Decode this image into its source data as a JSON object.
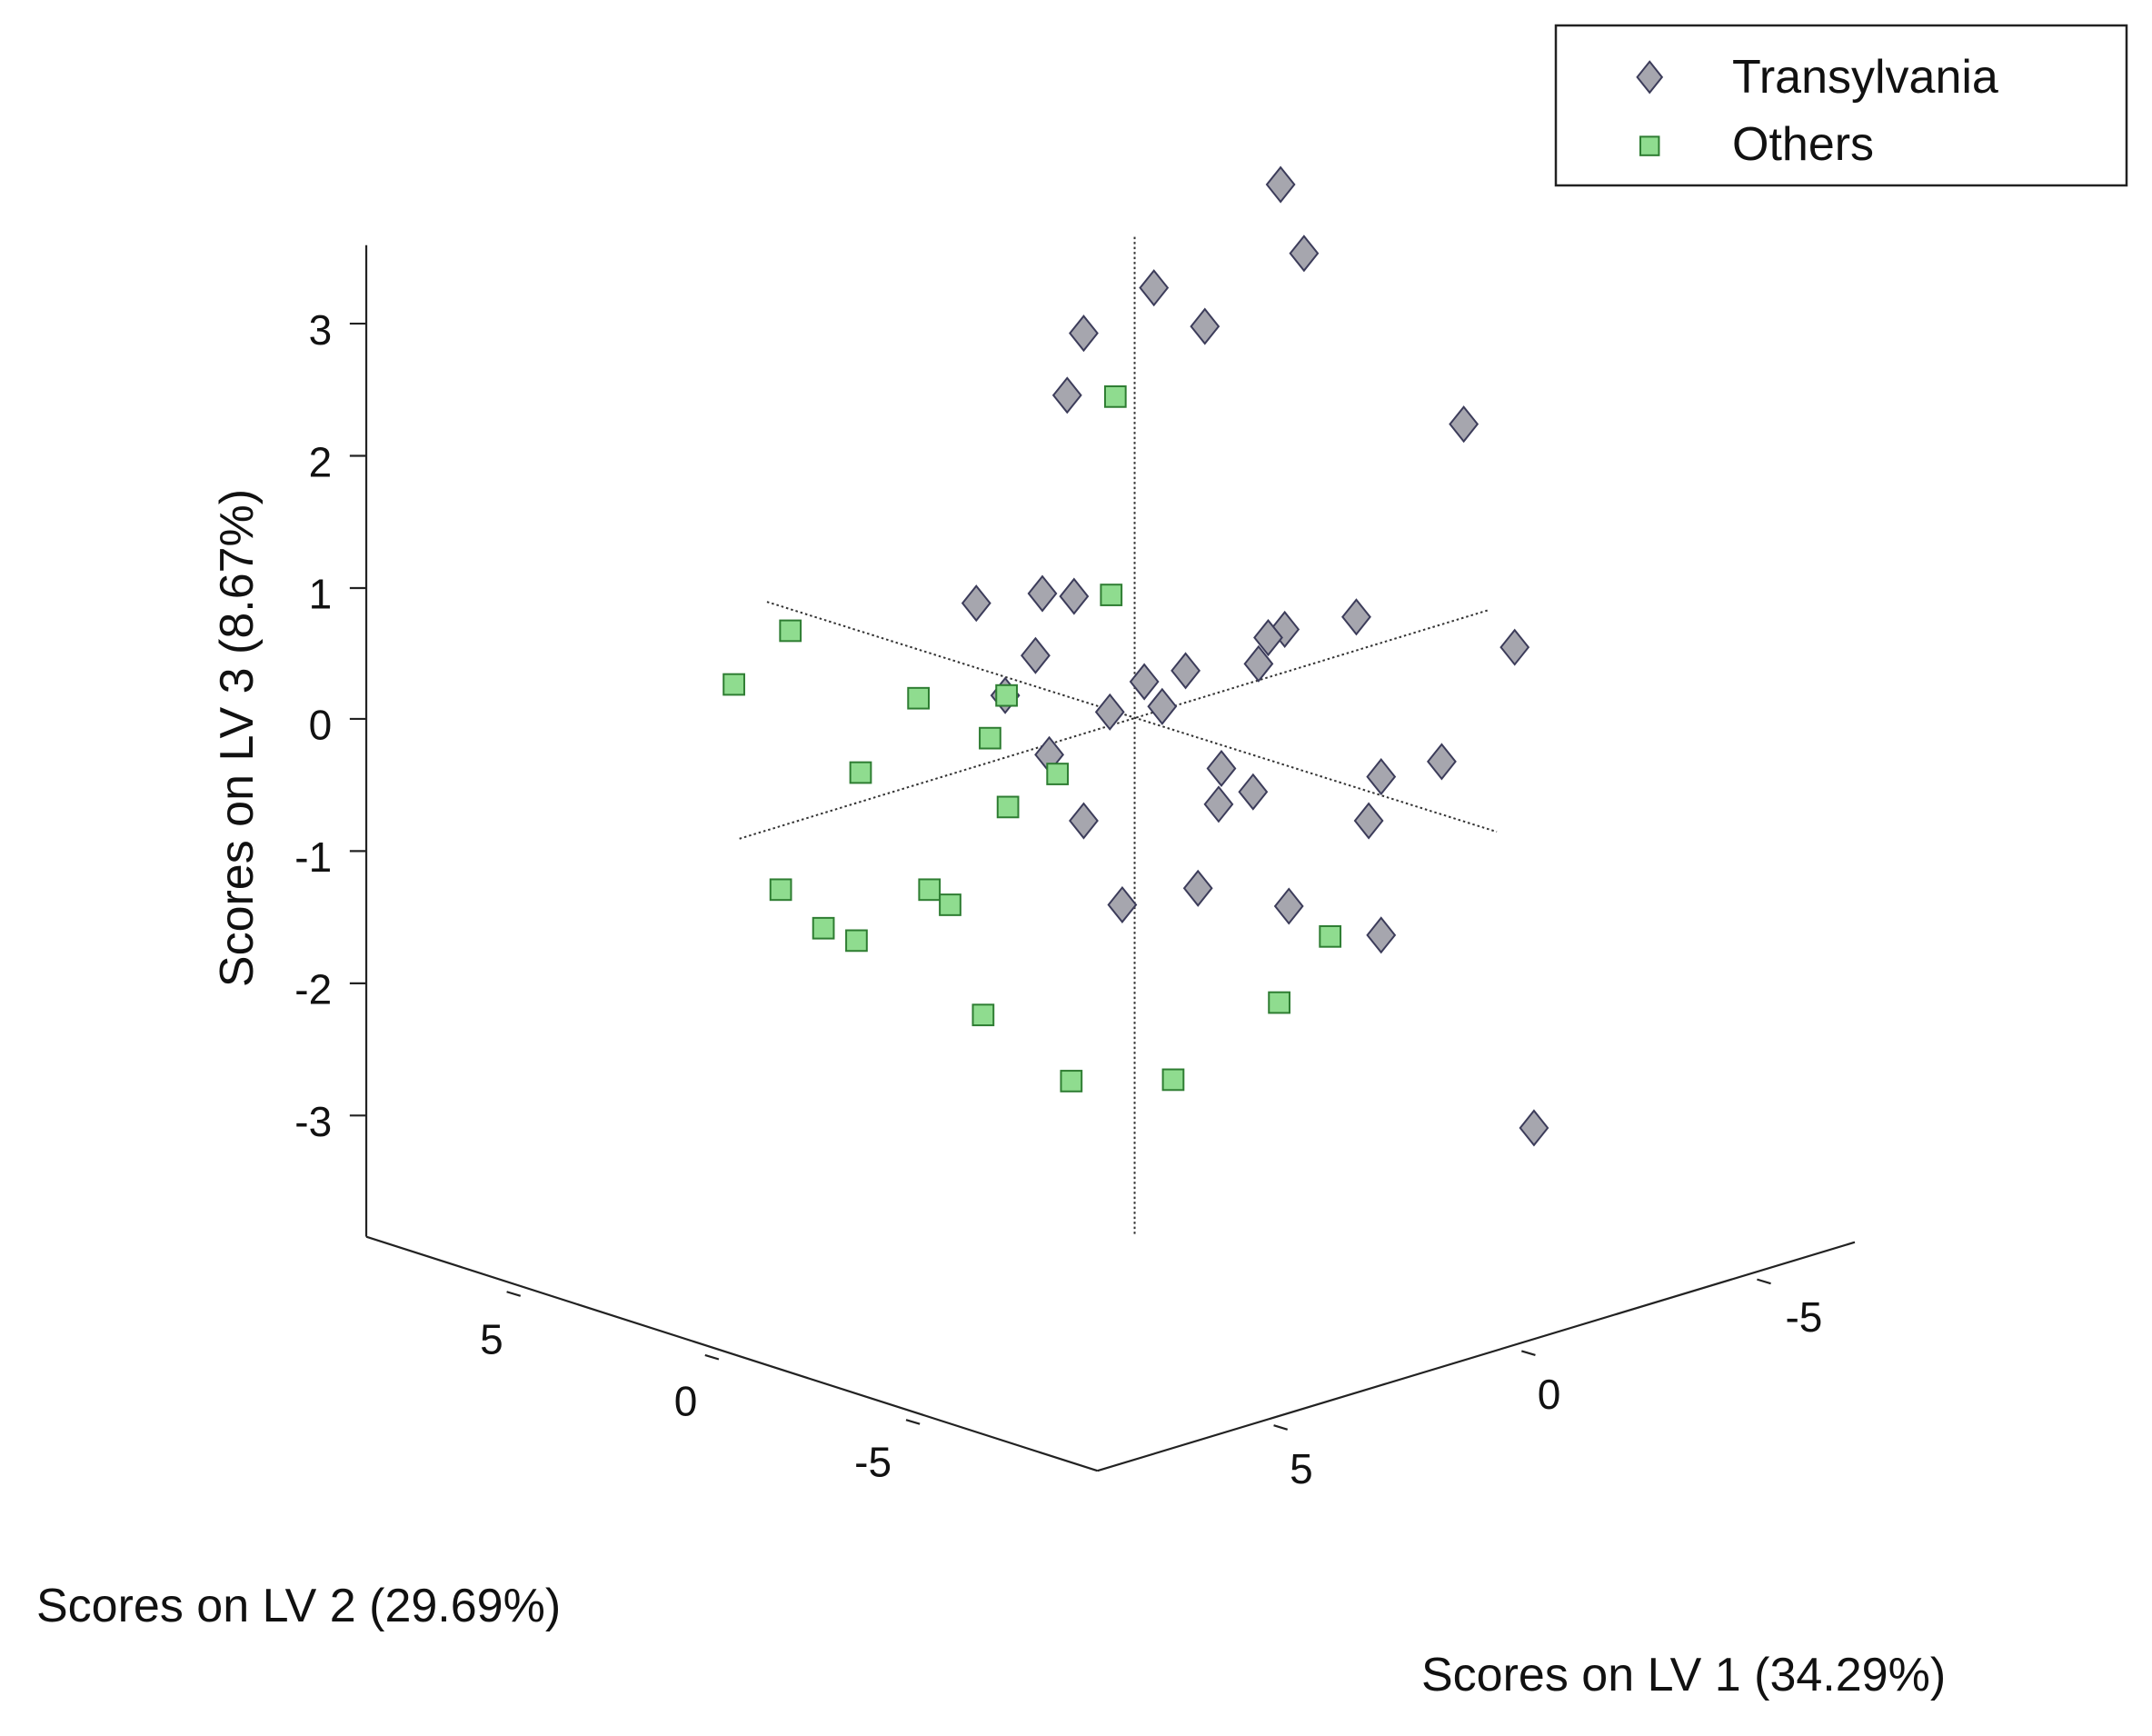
{
  "chart_data": {
    "type": "scatter",
    "projection": "3d",
    "axes": {
      "z": {
        "label": "Scores on LV 3 (8.67%)",
        "ticks": [
          "3",
          "2",
          "1",
          "0",
          "-1",
          "-2",
          "-3"
        ]
      },
      "y": {
        "label": "Scores on LV 2 (29.69%)",
        "ticks": [
          "5",
          "0",
          "-5"
        ]
      },
      "x": {
        "label": "Scores on LV 1 (34.29%)",
        "ticks": [
          "-5",
          "0",
          "5"
        ]
      }
    },
    "legend": {
      "position": "top-right",
      "entries": [
        {
          "label": "Transylvania",
          "marker": "diamond"
        },
        {
          "label": "Others",
          "marker": "square"
        }
      ]
    },
    "colors": {
      "transylvania_fill": "#a6a6ae",
      "transylvania_stroke": "#3c3c5a",
      "others_fill": "#8fdc8f",
      "others_stroke": "#2e7d32"
    },
    "series": [
      {
        "name": "Transylvania",
        "marker": "diamond",
        "projected_points": [
          [
            930,
            134
          ],
          [
            947,
            184
          ],
          [
            838,
            209
          ],
          [
            875,
            237
          ],
          [
            787,
            242
          ],
          [
            775,
            287
          ],
          [
            1063,
            308
          ],
          [
            709,
            438
          ],
          [
            757,
            431
          ],
          [
            780,
            433
          ],
          [
            985,
            448
          ],
          [
            933,
            457
          ],
          [
            921,
            463
          ],
          [
            1100,
            470
          ],
          [
            752,
            476
          ],
          [
            914,
            482
          ],
          [
            861,
            487
          ],
          [
            831,
            495
          ],
          [
            730,
            505
          ],
          [
            806,
            517
          ],
          [
            844,
            513
          ],
          [
            762,
            548
          ],
          [
            1047,
            553
          ],
          [
            887,
            558
          ],
          [
            1003,
            564
          ],
          [
            910,
            575
          ],
          [
            885,
            584
          ],
          [
            994,
            596
          ],
          [
            787,
            596
          ],
          [
            870,
            645
          ],
          [
            815,
            657
          ],
          [
            936,
            658
          ],
          [
            1003,
            679
          ],
          [
            1114,
            819
          ]
        ]
      },
      {
        "name": "Others",
        "marker": "square",
        "projected_points": [
          [
            810,
            288
          ],
          [
            807,
            432
          ],
          [
            574,
            458
          ],
          [
            533,
            497
          ],
          [
            667,
            507
          ],
          [
            731,
            505
          ],
          [
            719,
            536
          ],
          [
            625,
            561
          ],
          [
            768,
            562
          ],
          [
            732,
            586
          ],
          [
            567,
            646
          ],
          [
            675,
            646
          ],
          [
            690,
            657
          ],
          [
            598,
            674
          ],
          [
            622,
            683
          ],
          [
            966,
            680
          ],
          [
            929,
            728
          ],
          [
            714,
            737
          ],
          [
            778,
            785
          ],
          [
            852,
            784
          ]
        ]
      }
    ]
  }
}
